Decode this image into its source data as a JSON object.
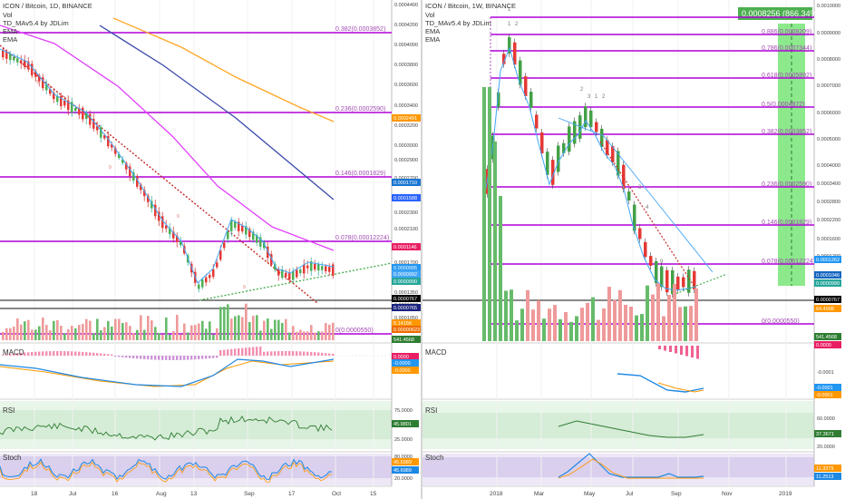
{
  "left": {
    "title": "ICON / Bitcoin, 1D, BINANCE",
    "indicators": [
      "Vol",
      "TD_MAv5.4 by JDLim",
      "EMA",
      "EMA"
    ],
    "price_axis": [
      "0.0004400",
      "0.0004200",
      "0.0004000",
      "0.0003800",
      "0.0003600",
      "0.0003400",
      "0.0003200",
      "0.0003000",
      "0.0002900",
      "0.0002700",
      "0.0002500",
      "0.0002300",
      "0.0002100",
      "0.0001900",
      "0.0001700",
      "0.0001500",
      "0.0001350",
      "0.0001200",
      "0.0001050"
    ],
    "fib_levels": [
      {
        "label": "0.382(0.0003852)",
        "tag": ""
      },
      {
        "label": "0.236(0.0002590)",
        "tag": "0.0002491"
      },
      {
        "label": "0.146(0.0001829)",
        "tag": "0.0001710"
      },
      {
        "label": "0.078(0.00012224)",
        "tag": "0.0001146"
      },
      {
        "label": "0(0.0000550)",
        "tag": "541.4568"
      }
    ],
    "price_tags": [
      {
        "text": "0.0001588",
        "color": "#2962ff"
      },
      {
        "text": "0.0000995",
        "color": "#2196f3"
      },
      {
        "text": "0.0000992",
        "color": "#42a5f5"
      },
      {
        "text": "0.0000990",
        "color": "#26a69a"
      },
      {
        "text": "0.0000767",
        "color": "#000000"
      },
      {
        "text": "0.0000765",
        "color": "#1a237e"
      },
      {
        "text": "5.1416K",
        "color": "#ff9800"
      },
      {
        "text": "0.00000623",
        "color": "#ef6c00"
      }
    ],
    "macd": {
      "label": "MACD",
      "tags": [
        {
          "text": "0.0000",
          "color": "#e91e63"
        },
        {
          "text": "-0.0000",
          "color": "#2196f3"
        },
        {
          "text": "-0.0000",
          "color": "#ff9800"
        }
      ]
    },
    "rsi": {
      "label": "RSI",
      "axis": [
        "75.0000",
        "45.9801",
        "25.0000"
      ],
      "tag": "45.9801"
    },
    "stoch": {
      "label": "Stoch",
      "axis": [
        "80.0000",
        "45.6989",
        "20.0000"
      ],
      "tags": [
        "45.6989",
        "45.6989"
      ]
    },
    "time_axis": [
      "18",
      "Jul",
      "16",
      "Aug",
      "13",
      "Sep",
      "17",
      "Oct",
      "15"
    ]
  },
  "right": {
    "title": "ICON / Bitcoin, 1W, BINANCE",
    "indicators": [
      "Vol",
      "TD_MAv5.4 by JDLim",
      "EMA",
      "EMA"
    ],
    "price_axis": [
      "0.0010000",
      "0.0009000",
      "0.0008000",
      "0.0007000",
      "0.0006000",
      "0.0005000",
      "0.0004000",
      "0.0003400",
      "0.0002800",
      "0.0002200",
      "0.0001600",
      "0.0001200",
      "0.0000510"
    ],
    "measure_label": "0.0008256 (866.34%)",
    "fib_levels": [
      {
        "label": "0.886(0.0008209)"
      },
      {
        "label": "0.786(0.0007344)"
      },
      {
        "label": "0.618(0.0005892)"
      },
      {
        "label": "0.5(0.0004872)"
      },
      {
        "label": "0.382(0.0003852)"
      },
      {
        "label": "0.236(0.0002590)"
      },
      {
        "label": "0.146(0.0001829)"
      },
      {
        "label": "0.078(0.00012224)"
      },
      {
        "label": "0(0.0000550)"
      }
    ],
    "price_tags": [
      {
        "text": "0.0001262",
        "color": "#2196f3"
      },
      {
        "text": "0.0001046",
        "color": "#1565c0"
      },
      {
        "text": "0.0000990",
        "color": "#26a69a"
      },
      {
        "text": "0.0000767",
        "color": "#000000"
      },
      {
        "text": "64.4998",
        "color": "#ff9800"
      },
      {
        "text": "541.4568",
        "color": "#2e7d32"
      }
    ],
    "td_counts": [
      "1",
      "2",
      "1",
      "2",
      "3",
      "1",
      "2",
      "3",
      "4",
      "9"
    ],
    "macd": {
      "label": "MACD",
      "axis": [
        "-0.0001"
      ],
      "tags": [
        {
          "text": "0.0000",
          "color": "#e91e63"
        },
        {
          "text": "-0.0001",
          "color": "#2196f3"
        },
        {
          "text": "-0.0001",
          "color": "#ff9800"
        }
      ]
    },
    "rsi": {
      "label": "RSI",
      "axis": [
        "60.0000",
        "37.3671",
        "20.0000"
      ],
      "tag": "37.3671"
    },
    "stoch": {
      "label": "Stoch",
      "axis": [
        "11.3379",
        "11.2513"
      ],
      "tags": [
        "11.3379",
        "11.2513"
      ]
    },
    "time_axis": [
      "2018",
      "Mar",
      "May",
      "Jul",
      "Sep",
      "Nov",
      "2019"
    ]
  },
  "chart_data": [
    {
      "type": "candlestick",
      "title": "ICON / Bitcoin, 1D, BINANCE",
      "approx_close_trend": [
        0.00037,
        0.00033,
        0.0003,
        0.00027,
        0.00023,
        0.00019,
        0.00016,
        0.00013,
        0.0001,
        8e-05,
        9e-05,
        0.00014,
        0.00012,
        0.0001,
        0.0001,
        9.9e-05
      ]
    },
    {
      "type": "candlestick",
      "title": "ICON / Bitcoin, 1W, BINANCE",
      "approx_close_trend": [
        0.00025,
        0.00085,
        0.00075,
        0.00055,
        0.00047,
        0.00045,
        0.0004,
        0.0003,
        0.00035,
        0.00055,
        0.0005,
        0.00045,
        0.0003,
        0.00022,
        0.00015,
        0.00011,
        0.0001,
        0.000105
      ]
    }
  ]
}
